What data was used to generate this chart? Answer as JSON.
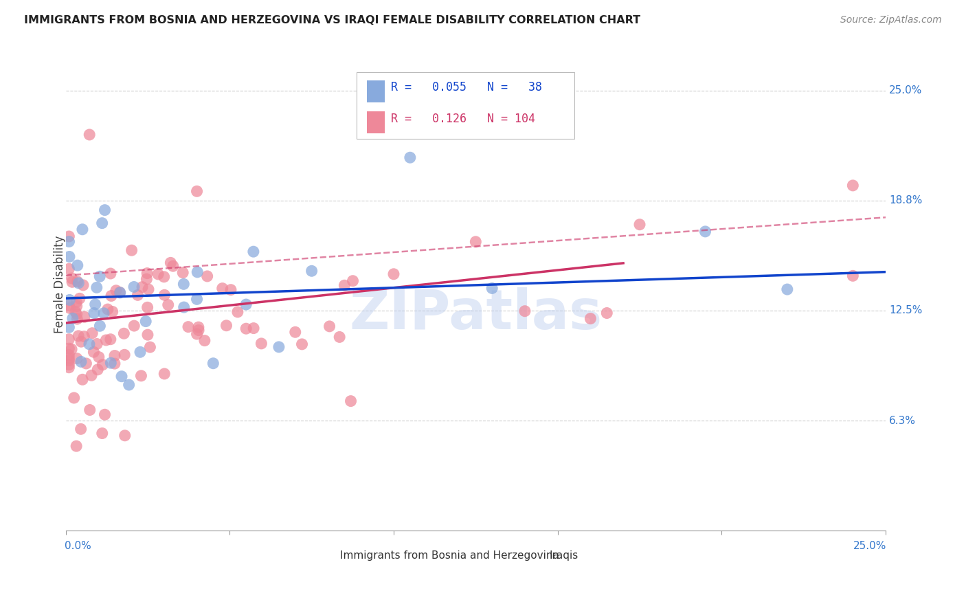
{
  "title": "IMMIGRANTS FROM BOSNIA AND HERZEGOVINA VS IRAQI FEMALE DISABILITY CORRELATION CHART",
  "source": "Source: ZipAtlas.com",
  "ylabel": "Female Disability",
  "ytick_values": [
    0.25,
    0.1875,
    0.125,
    0.0625
  ],
  "ytick_labels": [
    "25.0%",
    "18.8%",
    "12.5%",
    "6.3%"
  ],
  "xmin": 0.0,
  "xmax": 0.25,
  "ymin": 0.0,
  "ymax": 0.28,
  "r_bosnia": 0.055,
  "n_bosnia": 38,
  "r_iraqi": 0.126,
  "n_iraqi": 104,
  "color_bosnia": "#88aadd",
  "color_iraqi": "#ee8899",
  "color_trendline_bosnia": "#1144cc",
  "color_trendline_iraqi": "#cc3366",
  "watermark_color": "#bbccee",
  "background_color": "#ffffff",
  "grid_color": "#cccccc",
  "axis_label_color": "#3377cc",
  "title_color": "#222222",
  "source_color": "#888888",
  "ylabel_color": "#444444",
  "trendline_bosnia_y0": 0.132,
  "trendline_bosnia_y1": 0.147,
  "trendline_iraqi_y0": 0.118,
  "trendline_iraqi_y1": 0.168,
  "trendline_iraqi_dashed_y0": 0.145,
  "trendline_iraqi_dashed_y1": 0.178
}
